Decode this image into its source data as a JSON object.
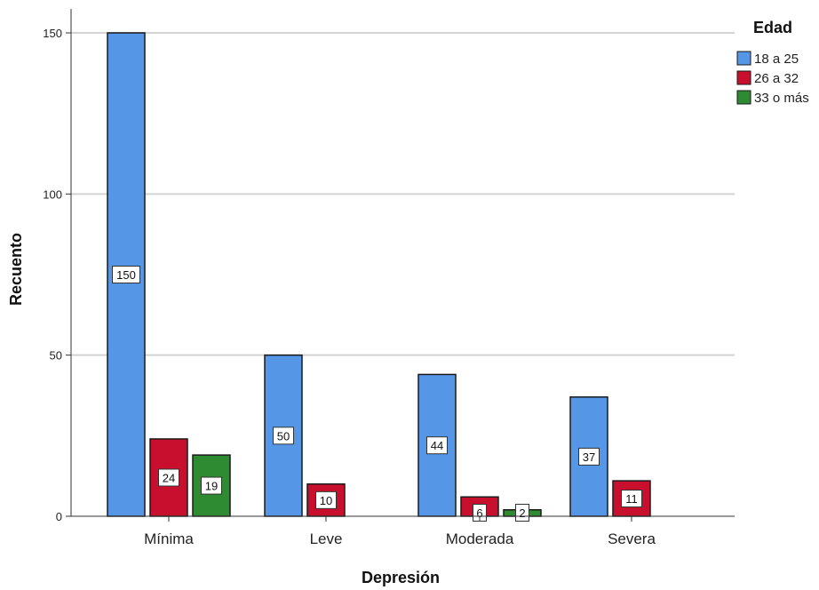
{
  "chart_data": {
    "type": "bar",
    "title": "",
    "xlabel": "Depresión",
    "ylabel": "Recuento",
    "categories": [
      "Mínima",
      "Leve",
      "Moderada",
      "Severa"
    ],
    "series": [
      {
        "name": "18 a 25",
        "color": "#5596E6",
        "values": [
          150,
          50,
          44,
          37
        ]
      },
      {
        "name": "26 a 32",
        "color": "#C8102E",
        "values": [
          24,
          10,
          6,
          11
        ]
      },
      {
        "name": "33 o más",
        "color": "#2E8B32",
        "values": [
          19,
          null,
          2,
          null
        ]
      }
    ],
    "ylim": [
      0,
      150
    ],
    "yticks": [
      0,
      50,
      100,
      150
    ],
    "grid": true,
    "legend": {
      "title": "Edad",
      "placement": "top-right"
    },
    "data_labels": true
  }
}
